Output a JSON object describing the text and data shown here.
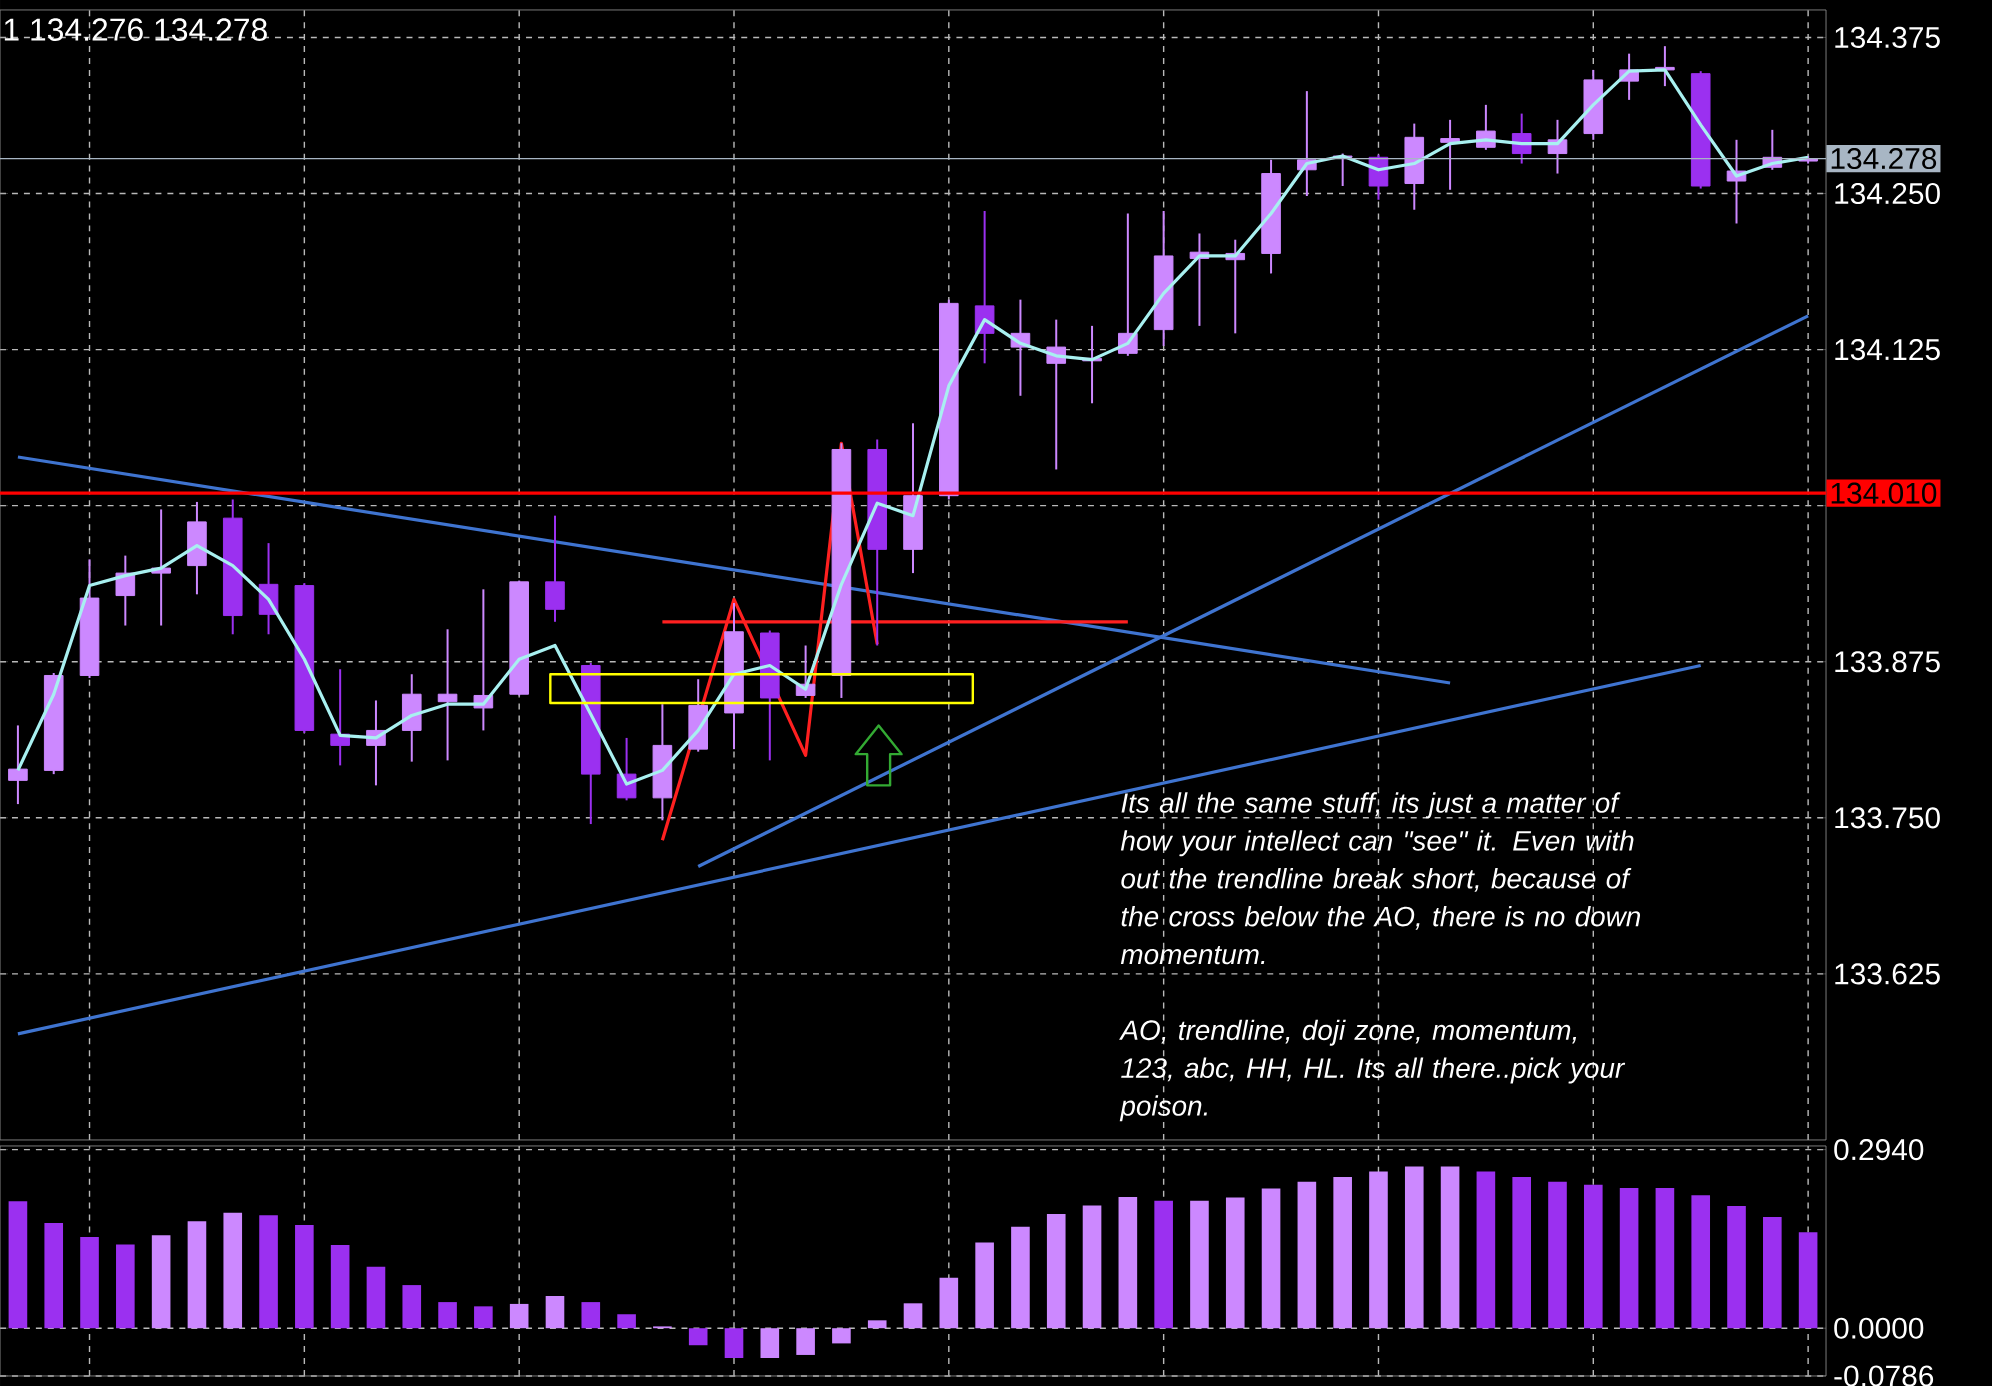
{
  "chart_data": [
    {
      "type": "candlestick",
      "categories": [
        null,
        null,
        null,
        null,
        null,
        null,
        null,
        null,
        null,
        null,
        null,
        null,
        null,
        null,
        null,
        null,
        null,
        null,
        null,
        null,
        null,
        null,
        null,
        null,
        null,
        null,
        null,
        null,
        null,
        null,
        null,
        null,
        null,
        null,
        null,
        null,
        null,
        null,
        null,
        null,
        null,
        null,
        null,
        null,
        null,
        null,
        null,
        null,
        null,
        null,
        null
      ],
      "ohlc": [
        [
          133.78,
          133.824,
          133.761,
          133.789
        ],
        [
          133.788,
          133.866,
          133.785,
          133.864
        ],
        [
          133.864,
          133.957,
          133.862,
          133.926
        ],
        [
          133.928,
          133.96,
          133.904,
          133.946
        ],
        [
          133.946,
          133.997,
          133.904,
          133.95
        ],
        [
          133.952,
          134.003,
          133.929,
          133.987
        ],
        [
          133.99,
          134.005,
          133.897,
          133.912
        ],
        [
          133.937,
          133.97,
          133.897,
          133.913
        ],
        [
          133.936,
          133.938,
          133.818,
          133.82
        ],
        [
          133.817,
          133.869,
          133.792,
          133.808
        ],
        [
          133.808,
          133.844,
          133.776,
          133.82
        ],
        [
          133.82,
          133.865,
          133.795,
          133.849
        ],
        [
          133.843,
          133.901,
          133.796,
          133.849
        ],
        [
          133.838,
          133.933,
          133.82,
          133.848
        ],
        [
          133.849,
          133.94,
          133.848,
          133.939
        ],
        [
          133.939,
          133.992,
          133.907,
          133.917
        ],
        [
          133.872,
          133.874,
          133.745,
          133.785
        ],
        [
          133.785,
          133.814,
          133.764,
          133.766
        ],
        [
          133.766,
          133.841,
          133.748,
          133.808
        ],
        [
          133.805,
          133.861,
          133.803,
          133.84
        ],
        [
          133.834,
          133.922,
          133.805,
          133.899
        ],
        [
          133.898,
          133.9,
          133.796,
          133.846
        ],
        [
          133.848,
          133.888,
          133.846,
          133.857
        ],
        [
          133.864,
          134.05,
          133.846,
          134.045
        ],
        [
          134.045,
          134.053,
          133.888,
          133.965
        ],
        [
          133.965,
          134.066,
          133.946,
          134.008
        ],
        [
          134.008,
          134.165,
          134.005,
          134.162
        ],
        [
          134.16,
          134.236,
          134.114,
          134.138
        ],
        [
          134.127,
          134.165,
          134.088,
          134.138
        ],
        [
          134.114,
          134.149,
          134.029,
          134.127
        ],
        [
          134.116,
          134.144,
          134.082,
          134.118
        ],
        [
          134.122,
          134.234,
          134.12,
          134.138
        ],
        [
          134.141,
          134.236,
          134.128,
          134.2
        ],
        [
          134.198,
          134.218,
          134.144,
          134.203
        ],
        [
          134.197,
          134.213,
          134.138,
          134.202
        ],
        [
          134.202,
          134.277,
          134.186,
          134.266
        ],
        [
          134.269,
          134.332,
          134.248,
          134.277
        ],
        [
          134.279,
          134.282,
          134.256,
          134.28
        ],
        [
          134.279,
          134.281,
          134.245,
          134.256
        ],
        [
          134.258,
          134.306,
          134.237,
          134.295
        ],
        [
          134.291,
          134.309,
          134.253,
          134.294
        ],
        [
          134.287,
          134.321,
          134.285,
          134.3
        ],
        [
          134.298,
          134.314,
          134.274,
          134.282
        ],
        [
          134.282,
          134.309,
          134.266,
          134.293
        ],
        [
          134.298,
          134.349,
          134.293,
          134.341
        ],
        [
          134.34,
          134.362,
          134.325,
          134.349
        ],
        [
          134.349,
          134.368,
          134.336,
          134.351
        ],
        [
          134.346,
          134.348,
          134.254,
          134.256
        ],
        [
          134.26,
          134.293,
          134.226,
          134.268
        ],
        [
          134.271,
          134.301,
          134.269,
          134.279
        ],
        [
          134.276,
          134.28,
          134.274,
          134.278
        ]
      ],
      "colors": [
        "#cc88ff",
        "#cc88ff",
        "#cc88ff",
        "#cc88ff",
        "#cc88ff",
        "#cc88ff",
        "#9b30f0",
        "#9b30f0",
        "#9b30f0",
        "#9b30f0",
        "#cc88ff",
        "#cc88ff",
        "#cc88ff",
        "#cc88ff",
        "#cc88ff",
        "#9b30f0",
        "#9b30f0",
        "#9b30f0",
        "#cc88ff",
        "#cc88ff",
        "#cc88ff",
        "#9b30f0",
        "#cc88ff",
        "#cc88ff",
        "#9b30f0",
        "#cc88ff",
        "#cc88ff",
        "#9b30f0",
        "#cc88ff",
        "#cc88ff",
        "#cc88ff",
        "#cc88ff",
        "#cc88ff",
        "#cc88ff",
        "#cc88ff",
        "#cc88ff",
        "#cc88ff",
        "#cc88ff",
        "#9b30f0",
        "#cc88ff",
        "#cc88ff",
        "#cc88ff",
        "#9b30f0",
        "#cc88ff",
        "#cc88ff",
        "#cc88ff",
        "#cc88ff",
        "#9b30f0",
        "#cc88ff",
        "#cc88ff",
        "#cc88ff"
      ],
      "series": [
        {
          "type": "line",
          "color": "#a8f0f0",
          "values": [
            133.788,
            133.849,
            133.936,
            133.944,
            133.95,
            133.968,
            133.952,
            133.925,
            133.877,
            133.816,
            133.814,
            133.832,
            133.841,
            133.841,
            133.877,
            133.888,
            133.833,
            133.777,
            133.788,
            133.82,
            133.865,
            133.872,
            133.853,
            133.937,
            134.002,
            133.992,
            134.096,
            134.149,
            134.13,
            134.12,
            134.117,
            134.13,
            134.17,
            134.2,
            134.2,
            134.234,
            134.274,
            134.28,
            134.269,
            134.274,
            134.29,
            134.293,
            134.29,
            134.29,
            134.321,
            134.348,
            134.349,
            134.305,
            134.264,
            134.274,
            134.279
          ]
        },
        {
          "type": "line",
          "color": "#3f74d0",
          "values": [
            134.039,
            null,
            null,
            null,
            null,
            null,
            null,
            null,
            null,
            null,
            null,
            null,
            null,
            null,
            null,
            null,
            null,
            null,
            null,
            null,
            null,
            null,
            null,
            null,
            null,
            null,
            null,
            null,
            null,
            null,
            null,
            null,
            null,
            null,
            null,
            null,
            null,
            null,
            null,
            null,
            133.858,
            null,
            null,
            null,
            null,
            null,
            null,
            null,
            null,
            null,
            null
          ]
        },
        {
          "type": "line",
          "color": "#3f74d0",
          "values": [
            null,
            null,
            null,
            null,
            null,
            null,
            null,
            null,
            null,
            null,
            null,
            null,
            null,
            null,
            null,
            null,
            null,
            null,
            null,
            133.711,
            null,
            null,
            null,
            null,
            null,
            null,
            null,
            null,
            null,
            null,
            null,
            null,
            null,
            null,
            null,
            null,
            null,
            null,
            null,
            null,
            null,
            null,
            null,
            null,
            null,
            null,
            null,
            null,
            null,
            null,
            134.152
          ]
        },
        {
          "type": "line",
          "color": "#3f74d0",
          "values": [
            133.577,
            null,
            null,
            null,
            null,
            null,
            null,
            null,
            null,
            null,
            null,
            null,
            null,
            null,
            null,
            null,
            null,
            null,
            null,
            null,
            null,
            null,
            null,
            null,
            null,
            null,
            null,
            null,
            null,
            null,
            null,
            null,
            null,
            null,
            null,
            null,
            null,
            null,
            null,
            null,
            null,
            null,
            null,
            null,
            null,
            null,
            null,
            133.872,
            null,
            null,
            null
          ]
        },
        {
          "type": "line",
          "color": "#ff2020",
          "values": [
            null,
            null,
            null,
            null,
            null,
            null,
            null,
            null,
            null,
            null,
            null,
            null,
            null,
            null,
            null,
            null,
            null,
            null,
            133.732,
            null,
            133.925,
            null,
            133.8,
            134.05,
            133.889,
            null,
            null,
            null,
            null,
            null,
            null,
            null,
            null,
            null,
            null,
            null,
            null,
            null,
            null,
            null,
            null,
            null,
            null,
            null,
            null,
            null,
            null,
            null,
            null,
            null,
            null
          ]
        },
        {
          "type": "line",
          "color": "#ff2020",
          "values": [
            null,
            null,
            null,
            null,
            null,
            null,
            null,
            null,
            null,
            null,
            null,
            null,
            null,
            null,
            null,
            null,
            null,
            null,
            133.907,
            null,
            null,
            null,
            null,
            null,
            null,
            null,
            null,
            null,
            null,
            null,
            null,
            133.907,
            null,
            null,
            null,
            null,
            null,
            null,
            null,
            null,
            null,
            null,
            null,
            null,
            null,
            null,
            null,
            null,
            null,
            null,
            null
          ]
        }
      ],
      "ref_lines": [
        {
          "axis": "y",
          "value": 134.01,
          "label": "134.010",
          "color": "#ff0000"
        },
        {
          "axis": "y",
          "value": 134.278,
          "label": "134.278",
          "color": "#a8b6c4"
        }
      ],
      "ylim": [
        133.492,
        134.397
      ],
      "yticks": [
        {
          "value": 133.625,
          "label": "133.625"
        },
        {
          "value": 133.75,
          "label": "133.750"
        },
        {
          "value": 133.875,
          "label": "133.875"
        },
        {
          "value": 134.0,
          "label": null
        },
        {
          "value": 134.125,
          "label": "134.125"
        },
        {
          "value": 134.25,
          "label": "134.250"
        },
        {
          "value": 134.375,
          "label": "134.375"
        }
      ],
      "grid": true,
      "annotations": [
        "1 134.276 134.278",
        "Its all the same stuff, its just a matter of how your intellect can \"see\" it. Even with out the trendline break short, because of the cross below the AO, there is no down momentum.",
        "AO, trendline, doji zone, momentum, 123, abc, HH, HL.  Its all there..pick your poison."
      ]
    },
    {
      "type": "bar",
      "categories": [
        null,
        null,
        null,
        null,
        null,
        null,
        null,
        null,
        null,
        null,
        null,
        null,
        null,
        null,
        null,
        null,
        null,
        null,
        null,
        null,
        null,
        null,
        null,
        null,
        null,
        null,
        null,
        null,
        null,
        null,
        null,
        null,
        null,
        null,
        null,
        null,
        null,
        null,
        null,
        null,
        null,
        null,
        null,
        null,
        null,
        null,
        null,
        null,
        null,
        null,
        null
      ],
      "values": [
        0.209,
        0.173,
        0.15,
        0.138,
        0.153,
        0.176,
        0.19,
        0.186,
        0.17,
        0.137,
        0.101,
        0.071,
        0.043,
        0.036,
        0.04,
        0.053,
        0.043,
        0.023,
        0.003,
        -0.028,
        -0.049,
        -0.049,
        -0.044,
        -0.025,
        0.013,
        0.041,
        0.083,
        0.141,
        0.167,
        0.188,
        0.202,
        0.216,
        0.21,
        0.21,
        0.215,
        0.23,
        0.241,
        0.249,
        0.258,
        0.266,
        0.266,
        0.258,
        0.249,
        0.241,
        0.236,
        0.231,
        0.231,
        0.219,
        0.201,
        0.183,
        0.158
      ],
      "colors": [
        "#9b30f0",
        "#9b30f0",
        "#9b30f0",
        "#9b30f0",
        "#cc88ff",
        "#cc88ff",
        "#cc88ff",
        "#9b30f0",
        "#9b30f0",
        "#9b30f0",
        "#9b30f0",
        "#9b30f0",
        "#9b30f0",
        "#9b30f0",
        "#cc88ff",
        "#cc88ff",
        "#9b30f0",
        "#9b30f0",
        "#cc88ff",
        "#9b30f0",
        "#9b30f0",
        "#cc88ff",
        "#cc88ff",
        "#cc88ff",
        "#cc88ff",
        "#cc88ff",
        "#cc88ff",
        "#cc88ff",
        "#cc88ff",
        "#cc88ff",
        "#cc88ff",
        "#cc88ff",
        "#9b30f0",
        "#cc88ff",
        "#cc88ff",
        "#cc88ff",
        "#cc88ff",
        "#cc88ff",
        "#cc88ff",
        "#cc88ff",
        "#cc88ff",
        "#9b30f0",
        "#9b30f0",
        "#9b30f0",
        "#9b30f0",
        "#9b30f0",
        "#9b30f0",
        "#9b30f0",
        "#9b30f0",
        "#9b30f0",
        "#9b30f0"
      ],
      "ylim": [
        -0.0786,
        0.3
      ],
      "yticks": [
        {
          "value": -0.0786,
          "label": "-0.0786"
        },
        {
          "value": 0.0,
          "label": "0.0000"
        },
        {
          "value": 0.294,
          "label": "0.2940"
        }
      ],
      "grid": true
    }
  ]
}
